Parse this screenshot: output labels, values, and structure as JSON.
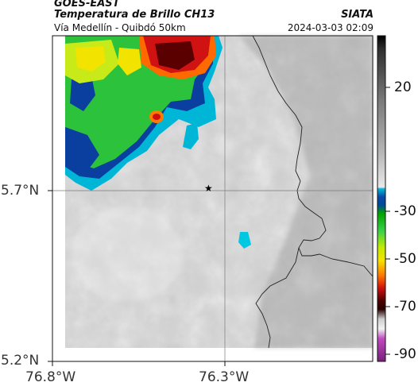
{
  "header": {
    "satellite": "GOES-EAST",
    "product": "Temperatura de Brillo CH13",
    "region": "Vía Medellín - Quibdó 50km",
    "organization": "SIATA",
    "timestamp": "2024-03-03 02:09"
  },
  "axes": {
    "lat_ticks": [
      "5.7°N",
      "5.2°N"
    ],
    "lon_ticks": [
      "76.8°W",
      "76.3°W"
    ]
  },
  "colorbar": {
    "ticks": [
      "20",
      "-30",
      "-50",
      "-70",
      "-90"
    ]
  },
  "map": {
    "marker_symbol": "★"
  }
}
